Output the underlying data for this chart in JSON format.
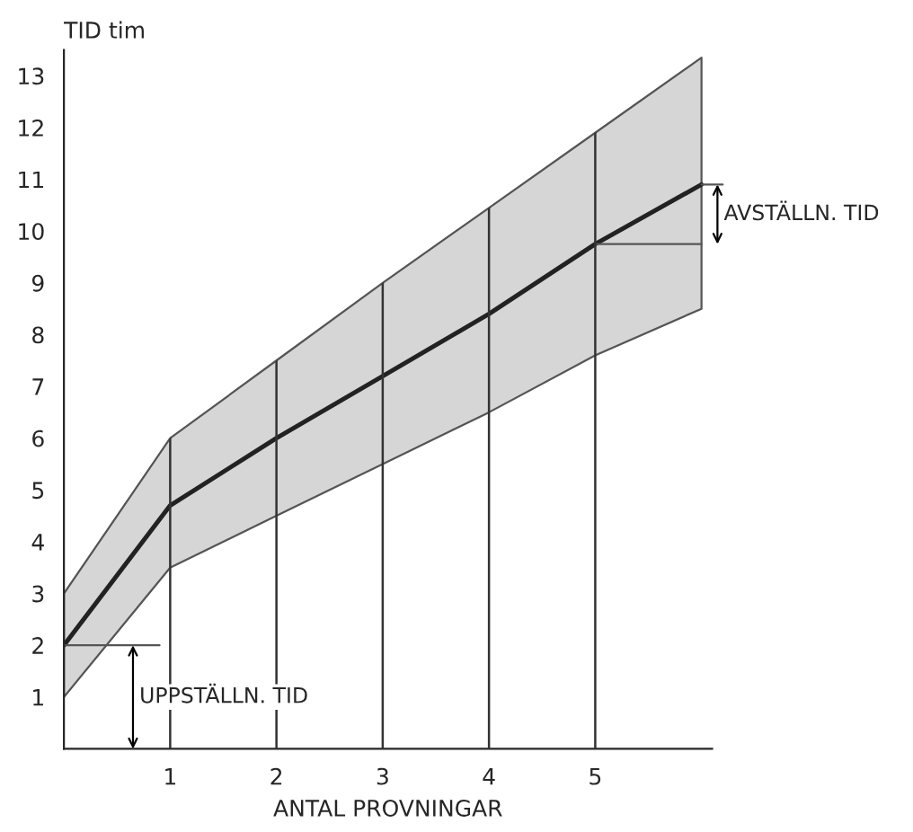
{
  "chart_data": {
    "type": "line",
    "ylabel": "TID tim",
    "xlabel": "ANTAL PROVNINGAR",
    "x": [
      0,
      1,
      2,
      3,
      4,
      5,
      6
    ],
    "series": [
      {
        "color": "#222222",
        "values": [
          2,
          4.7,
          6,
          7.2,
          8.4,
          9.75,
          10.9
        ],
        "lower": [
          1,
          3.5,
          4.5,
          5.5,
          6.5,
          7.6,
          8.5
        ],
        "upper": [
          3,
          6,
          7.5,
          9,
          10.45,
          11.9,
          13.35
        ]
      }
    ],
    "xlim": [
      0,
      6.1
    ],
    "ylim": [
      0,
      13.5
    ],
    "xticks": [
      1,
      2,
      3,
      4,
      5
    ],
    "yticks": [
      1,
      2,
      3,
      4,
      5,
      6,
      7,
      8,
      9,
      10,
      11,
      12,
      13
    ],
    "grid": "x",
    "legend": false,
    "marker": "none",
    "line_style": "solid",
    "annotations": [
      "UPPSTÄLLN. TID",
      "AVSTÄLLN. TID"
    ]
  }
}
